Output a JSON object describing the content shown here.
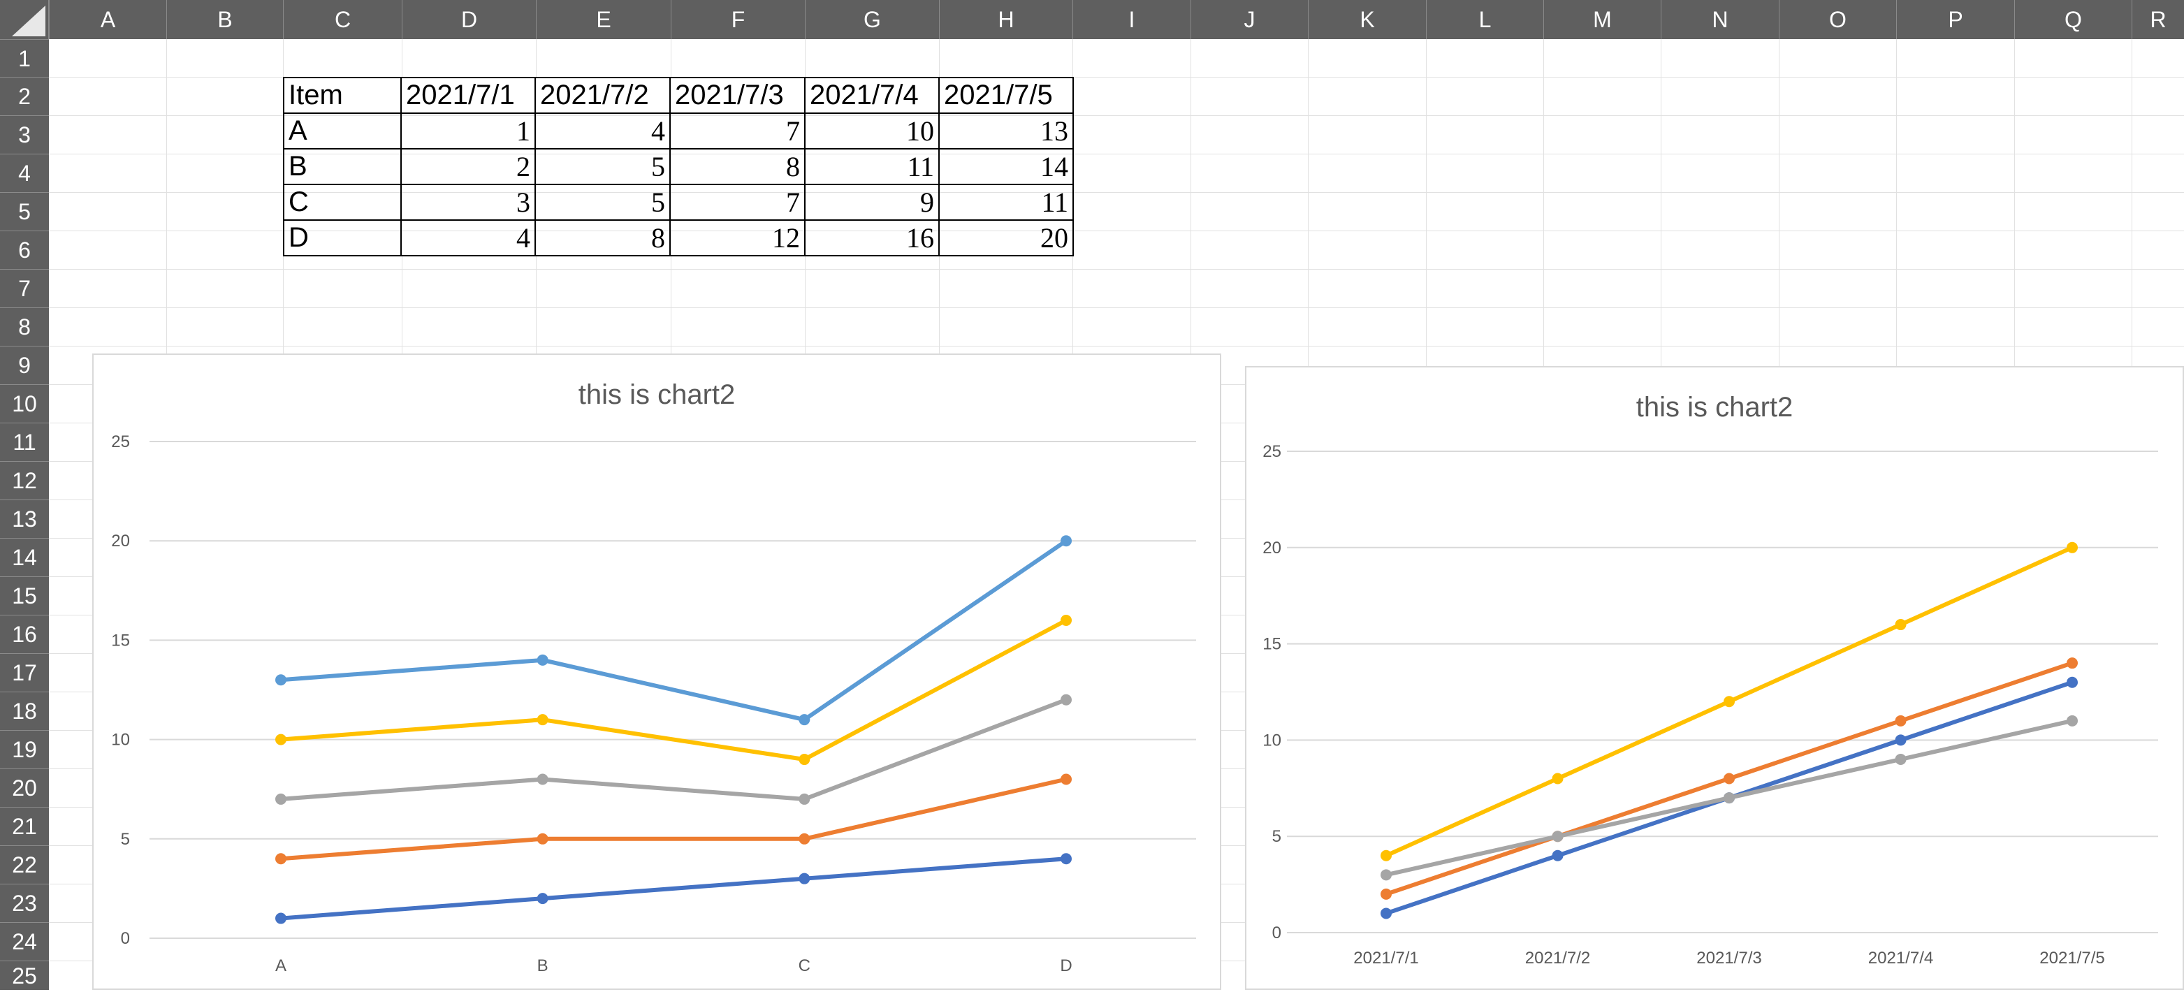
{
  "spreadsheet": {
    "columns": [
      "A",
      "B",
      "C",
      "D",
      "E",
      "F",
      "G",
      "H",
      "I",
      "J",
      "K",
      "L",
      "M",
      "N",
      "O",
      "P",
      "Q",
      "R"
    ],
    "rows": [
      "1",
      "2",
      "3",
      "4",
      "5",
      "6",
      "7",
      "8",
      "9",
      "10",
      "11",
      "12",
      "13",
      "14",
      "15",
      "16",
      "17",
      "18",
      "19",
      "20",
      "21",
      "22",
      "23",
      "24",
      "25"
    ]
  },
  "table": {
    "header": [
      "Item",
      "2021/7/1",
      "2021/7/2",
      "2021/7/3",
      "2021/7/4",
      "2021/7/5"
    ],
    "rows": [
      {
        "item": "A",
        "values": [
          "1",
          "4",
          "7",
          "10",
          "13"
        ]
      },
      {
        "item": "B",
        "values": [
          "2",
          "5",
          "8",
          "11",
          "14"
        ]
      },
      {
        "item": "C",
        "values": [
          "3",
          "5",
          "7",
          "9",
          "11"
        ]
      },
      {
        "item": "D",
        "values": [
          "4",
          "8",
          "12",
          "16",
          "20"
        ]
      }
    ]
  },
  "chart_data": [
    {
      "type": "line",
      "title": "this is chart2",
      "categories": [
        "A",
        "B",
        "C",
        "D"
      ],
      "ylim": [
        0,
        25
      ],
      "yticks": [
        "0",
        "5",
        "10",
        "15",
        "20",
        "25"
      ],
      "grid": true,
      "series": [
        {
          "values": [
            1,
            2,
            3,
            4
          ],
          "color": "#4472C4"
        },
        {
          "values": [
            4,
            5,
            5,
            8
          ],
          "color": "#ED7D31"
        },
        {
          "values": [
            7,
            8,
            7,
            12
          ],
          "color": "#A5A5A5"
        },
        {
          "values": [
            10,
            11,
            9,
            16
          ],
          "color": "#FFC000"
        },
        {
          "values": [
            13,
            14,
            11,
            20
          ],
          "color": "#5B9BD5"
        }
      ]
    },
    {
      "type": "line",
      "title": "this is chart2",
      "categories": [
        "2021/7/1",
        "2021/7/2",
        "2021/7/3",
        "2021/7/4",
        "2021/7/5"
      ],
      "ylim": [
        0,
        25
      ],
      "yticks": [
        "0",
        "5",
        "10",
        "15",
        "20",
        "25"
      ],
      "grid": true,
      "series": [
        {
          "values": [
            1,
            4,
            7,
            10,
            13
          ],
          "color": "#4472C4"
        },
        {
          "values": [
            2,
            5,
            8,
            11,
            14
          ],
          "color": "#ED7D31"
        },
        {
          "values": [
            3,
            5,
            7,
            9,
            11
          ],
          "color": "#A5A5A5"
        },
        {
          "values": [
            4,
            8,
            12,
            16,
            20
          ],
          "color": "#FFC000"
        }
      ]
    }
  ]
}
